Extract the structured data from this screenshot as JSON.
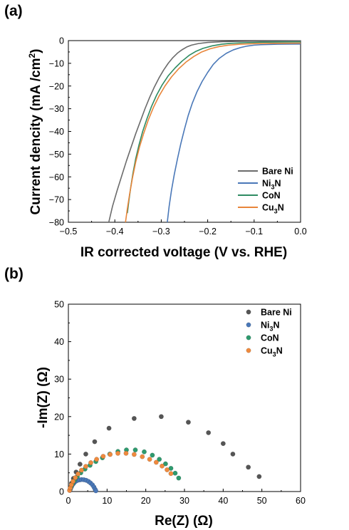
{
  "chart_data": [
    {
      "panel_label": "(a)",
      "type": "line",
      "xlabel": "IR corrected voltage (V  vs. RHE)",
      "ylabel_main": "Current dencity (mA /cm",
      "ylabel_sup": "2",
      "ylabel_end": ")",
      "xlim": [
        -0.5,
        0.0
      ],
      "ylim": [
        -80,
        0
      ],
      "xticks": [
        -0.5,
        -0.4,
        -0.3,
        -0.2,
        -0.1,
        0.0
      ],
      "xtick_labels": [
        "−0.5",
        "−0.4",
        "−0.3",
        "−0.2",
        "−0.1",
        "0.0"
      ],
      "yticks": [
        0,
        -10,
        -20,
        -30,
        -40,
        -50,
        -60,
        -70,
        -80
      ],
      "ytick_labels": [
        "0",
        "−10",
        "−20",
        "−30",
        "−40",
        "−50",
        "−60",
        "−70",
        "−80"
      ],
      "legend_position": "bottom-right",
      "series": [
        {
          "name": "Bare Ni",
          "name_main": "Bare Ni",
          "name_sub": "",
          "color": "#6b6b6b",
          "x": [
            -0.413,
            -0.405,
            -0.395,
            -0.385,
            -0.375,
            -0.365,
            -0.355,
            -0.345,
            -0.335,
            -0.325,
            -0.315,
            -0.305,
            -0.295,
            -0.285,
            -0.275,
            -0.265,
            -0.255,
            -0.245,
            -0.235,
            -0.22,
            -0.2,
            -0.17,
            -0.14,
            -0.1,
            -0.05,
            0.0
          ],
          "y": [
            -80,
            -73,
            -66,
            -59.5,
            -53,
            -47,
            -41,
            -35.5,
            -30,
            -25,
            -20.5,
            -16.5,
            -13,
            -10,
            -7.5,
            -5.5,
            -4,
            -2.8,
            -2,
            -1.3,
            -0.8,
            -0.5,
            -0.35,
            -0.25,
            -0.2,
            -0.15
          ]
        },
        {
          "name": "Ni3N",
          "name_main": "Ni",
          "name_sub": "3",
          "name_end": "N",
          "color": "#4a78b8",
          "x": [
            -0.287,
            -0.283,
            -0.278,
            -0.272,
            -0.265,
            -0.258,
            -0.25,
            -0.242,
            -0.233,
            -0.223,
            -0.212,
            -0.2,
            -0.188,
            -0.175,
            -0.16,
            -0.145,
            -0.13,
            -0.115,
            -0.1,
            -0.085,
            -0.07,
            -0.05,
            -0.03,
            0.0
          ],
          "y": [
            -80,
            -73,
            -66,
            -59,
            -52,
            -45.5,
            -39,
            -33,
            -27.5,
            -22.5,
            -18,
            -14,
            -10.5,
            -7.8,
            -5.6,
            -4.1,
            -3.1,
            -2.4,
            -2,
            -1.8,
            -1.7,
            -1.6,
            -1.55,
            -1.5
          ]
        },
        {
          "name": "CoN",
          "name_main": "CoN",
          "name_sub": "",
          "color": "#2e8b62",
          "x": [
            -0.373,
            -0.37,
            -0.366,
            -0.361,
            -0.355,
            -0.348,
            -0.34,
            -0.331,
            -0.321,
            -0.31,
            -0.298,
            -0.285,
            -0.27,
            -0.255,
            -0.24,
            -0.225,
            -0.21,
            -0.19,
            -0.17,
            -0.15,
            -0.12,
            -0.08,
            -0.04,
            0.0
          ],
          "y": [
            -76,
            -71,
            -65,
            -58.5,
            -52,
            -46,
            -40,
            -34.5,
            -29,
            -24,
            -19.5,
            -15.5,
            -12,
            -9,
            -6.5,
            -4.7,
            -3.4,
            -2.3,
            -1.6,
            -1.2,
            -0.9,
            -0.7,
            -0.6,
            -0.55
          ]
        },
        {
          "name": "Cu3N",
          "name_main": "Cu",
          "name_sub": "3",
          "name_end": "N",
          "color": "#e8853a",
          "x": [
            -0.377,
            -0.373,
            -0.368,
            -0.362,
            -0.355,
            -0.347,
            -0.338,
            -0.328,
            -0.317,
            -0.305,
            -0.292,
            -0.278,
            -0.263,
            -0.247,
            -0.23,
            -0.213,
            -0.195,
            -0.175,
            -0.155,
            -0.13,
            -0.1,
            -0.06,
            -0.03,
            0.0
          ],
          "y": [
            -80,
            -74,
            -67.5,
            -60.5,
            -53.5,
            -47,
            -41,
            -35,
            -29.5,
            -24.5,
            -20,
            -16,
            -12.5,
            -9.5,
            -7,
            -5,
            -3.6,
            -2.6,
            -2,
            -1.6,
            -1.35,
            -1.2,
            -1.15,
            -1.1
          ]
        }
      ]
    },
    {
      "panel_label": "(b)",
      "type": "scatter",
      "xlabel": "Re(Z) (Ω)",
      "ylabel": "-Im(Z) (Ω)",
      "xlim": [
        0,
        60
      ],
      "ylim": [
        0,
        50
      ],
      "xticks": [
        0,
        10,
        20,
        30,
        40,
        50,
        60
      ],
      "xtick_labels": [
        "0",
        "10",
        "20",
        "30",
        "40",
        "50",
        "60"
      ],
      "yticks": [
        0,
        10,
        20,
        30,
        40,
        50
      ],
      "ytick_labels": [
        "0",
        "10",
        "20",
        "30",
        "40",
        "50"
      ],
      "legend_position": "top-right",
      "series": [
        {
          "name": "Bare Ni",
          "name_main": "Bare Ni",
          "name_sub": "",
          "color": "#555555",
          "x": [
            0.5,
            0.8,
            1.3,
            2.0,
            3.0,
            4.5,
            6.8,
            10.5,
            17.0,
            24.0,
            31.0,
            36.2,
            40.0,
            42.5,
            46.5,
            49.3
          ],
          "y": [
            1.0,
            2.2,
            3.5,
            5.2,
            7.3,
            10.0,
            13.3,
            16.9,
            19.5,
            20.0,
            18.5,
            15.7,
            12.8,
            10.0,
            6.5,
            4.0
          ]
        },
        {
          "name": "Ni3N",
          "name_main": "Ni",
          "name_sub": "3",
          "name_end": "N",
          "color": "#4a78b8",
          "x": [
            0.4,
            0.6,
            0.8,
            1.0,
            1.3,
            1.6,
            2.0,
            2.4,
            2.9,
            3.4,
            4.0,
            4.6,
            5.2,
            5.7,
            6.2,
            6.6,
            6.9,
            7.1
          ],
          "y": [
            0.3,
            0.8,
            1.3,
            1.7,
            2.1,
            2.5,
            2.8,
            3.0,
            3.1,
            3.2,
            3.15,
            3.0,
            2.7,
            2.3,
            1.8,
            1.2,
            0.6,
            0.2
          ]
        },
        {
          "name": "CoN",
          "name_main": "CoN",
          "name_sub": "",
          "color": "#2e9a6e",
          "x": [
            0.4,
            0.7,
            1.1,
            1.6,
            2.3,
            3.2,
            4.3,
            5.6,
            7.1,
            8.8,
            10.7,
            12.8,
            15.0,
            17.3,
            19.6,
            21.7,
            23.5,
            25.1,
            26.5,
            27.6,
            28.5
          ],
          "y": [
            0.5,
            1.3,
            2.1,
            3.0,
            4.0,
            5.0,
            6.0,
            7.0,
            8.0,
            9.0,
            10.0,
            10.7,
            11.1,
            11.1,
            10.6,
            9.7,
            8.6,
            7.4,
            6.2,
            4.9,
            3.6
          ]
        },
        {
          "name": "Cu3N",
          "name_main": "Cu",
          "name_sub": "3",
          "name_end": "N",
          "color": "#ef8a3e",
          "x": [
            0.3,
            0.5,
            0.8,
            1.2,
            1.8,
            2.5,
            3.4,
            4.5,
            5.8,
            7.3,
            9.0,
            10.8,
            12.8,
            14.9,
            17.0,
            19.1,
            21.0,
            22.7,
            24.2,
            25.5,
            26.5
          ],
          "y": [
            0.3,
            1.0,
            1.8,
            2.7,
            3.7,
            4.7,
            5.7,
            6.7,
            7.7,
            8.6,
            9.4,
            9.9,
            10.2,
            10.2,
            9.9,
            9.3,
            8.6,
            7.8,
            6.8,
            5.8,
            4.8
          ]
        }
      ]
    }
  ]
}
